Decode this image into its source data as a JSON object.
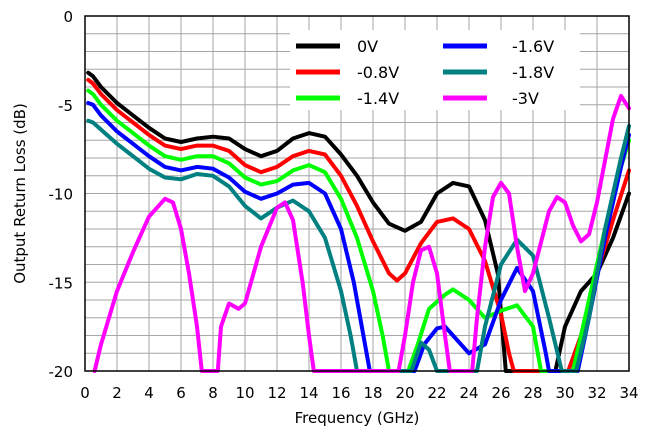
{
  "chart_data": {
    "type": "line",
    "title": "",
    "xlabel": "Frequency (GHz)",
    "ylabel": "Output Return Loss (dB)",
    "xlim": [
      0,
      34
    ],
    "ylim": [
      -20,
      0
    ],
    "x_ticks": [
      0,
      2,
      4,
      6,
      8,
      10,
      12,
      14,
      16,
      18,
      20,
      22,
      24,
      26,
      28,
      30,
      32,
      34
    ],
    "y_ticks": [
      0,
      -5,
      -10,
      -15,
      -20
    ],
    "grid": true,
    "legend_placement": "top-right",
    "series": [
      {
        "name": "0V",
        "color": "#000000",
        "points": [
          [
            0.2,
            -3.2
          ],
          [
            0.5,
            -3.4
          ],
          [
            1,
            -4.0
          ],
          [
            2,
            -4.9
          ],
          [
            3,
            -5.6
          ],
          [
            4,
            -6.3
          ],
          [
            5,
            -6.9
          ],
          [
            6,
            -7.1
          ],
          [
            7,
            -6.9
          ],
          [
            8,
            -6.8
          ],
          [
            9,
            -6.9
          ],
          [
            10,
            -7.5
          ],
          [
            11,
            -7.9
          ],
          [
            12,
            -7.6
          ],
          [
            13,
            -6.9
          ],
          [
            14,
            -6.6
          ],
          [
            15,
            -6.8
          ],
          [
            16,
            -7.8
          ],
          [
            17,
            -9.0
          ],
          [
            18,
            -10.5
          ],
          [
            19,
            -11.7
          ],
          [
            20,
            -12.1
          ],
          [
            21,
            -11.6
          ],
          [
            22,
            -10.0
          ],
          [
            23,
            -9.4
          ],
          [
            24,
            -9.6
          ],
          [
            25,
            -11.5
          ],
          [
            25.8,
            -14.5
          ],
          [
            26.3,
            -20
          ],
          [
            29.4,
            -20
          ],
          [
            30,
            -17.5
          ],
          [
            31,
            -15.5
          ],
          [
            32,
            -14.5
          ],
          [
            33,
            -12.5
          ],
          [
            34,
            -10.0
          ]
        ]
      },
      {
        "name": "-0.8V",
        "color": "#ff0000",
        "points": [
          [
            0.2,
            -3.6
          ],
          [
            0.5,
            -3.8
          ],
          [
            1,
            -4.4
          ],
          [
            2,
            -5.3
          ],
          [
            3,
            -6.0
          ],
          [
            4,
            -6.7
          ],
          [
            5,
            -7.3
          ],
          [
            6,
            -7.5
          ],
          [
            7,
            -7.3
          ],
          [
            8,
            -7.3
          ],
          [
            9,
            -7.6
          ],
          [
            10,
            -8.4
          ],
          [
            11,
            -8.8
          ],
          [
            12,
            -8.5
          ],
          [
            13,
            -7.9
          ],
          [
            14,
            -7.6
          ],
          [
            15,
            -7.8
          ],
          [
            16,
            -9.0
          ],
          [
            17,
            -10.7
          ],
          [
            18,
            -12.7
          ],
          [
            19,
            -14.5
          ],
          [
            19.5,
            -14.9
          ],
          [
            20,
            -14.5
          ],
          [
            21,
            -12.8
          ],
          [
            22,
            -11.6
          ],
          [
            23,
            -11.4
          ],
          [
            24,
            -12.0
          ],
          [
            25,
            -13.8
          ],
          [
            26,
            -16.8
          ],
          [
            26.5,
            -19
          ],
          [
            26.8,
            -20
          ],
          [
            30.2,
            -20
          ],
          [
            31,
            -18.0
          ],
          [
            32,
            -14.5
          ],
          [
            33,
            -11.5
          ],
          [
            34,
            -8.7
          ]
        ]
      },
      {
        "name": "-1.4V",
        "color": "#00ff00",
        "points": [
          [
            0.2,
            -4.2
          ],
          [
            0.5,
            -4.4
          ],
          [
            1,
            -5.0
          ],
          [
            2,
            -5.9
          ],
          [
            3,
            -6.6
          ],
          [
            4,
            -7.3
          ],
          [
            5,
            -7.9
          ],
          [
            6,
            -8.1
          ],
          [
            7,
            -7.9
          ],
          [
            8,
            -7.9
          ],
          [
            9,
            -8.3
          ],
          [
            10,
            -9.1
          ],
          [
            11,
            -9.5
          ],
          [
            12,
            -9.3
          ],
          [
            13,
            -8.7
          ],
          [
            14,
            -8.4
          ],
          [
            15,
            -8.8
          ],
          [
            16,
            -10.3
          ],
          [
            17,
            -12.5
          ],
          [
            18,
            -15.5
          ],
          [
            18.6,
            -18
          ],
          [
            19,
            -20
          ],
          [
            20.2,
            -20
          ],
          [
            20.8,
            -18.5
          ],
          [
            21.5,
            -16.5
          ],
          [
            22.5,
            -15.7
          ],
          [
            23,
            -15.4
          ],
          [
            24,
            -16.0
          ],
          [
            25,
            -17.0
          ],
          [
            26,
            -16.6
          ],
          [
            27,
            -16.3
          ],
          [
            28,
            -17.5
          ],
          [
            28.5,
            -20
          ],
          [
            30.5,
            -20
          ],
          [
            31.5,
            -16
          ],
          [
            32.5,
            -12
          ],
          [
            33.5,
            -8.5
          ],
          [
            34,
            -7.0
          ]
        ]
      },
      {
        "name": "-1.6V",
        "color": "#0000ff",
        "points": [
          [
            0.2,
            -4.9
          ],
          [
            0.5,
            -5.0
          ],
          [
            1,
            -5.6
          ],
          [
            2,
            -6.5
          ],
          [
            3,
            -7.2
          ],
          [
            4,
            -7.9
          ],
          [
            5,
            -8.5
          ],
          [
            6,
            -8.7
          ],
          [
            7,
            -8.5
          ],
          [
            8,
            -8.6
          ],
          [
            9,
            -9.1
          ],
          [
            10,
            -9.9
          ],
          [
            11,
            -10.3
          ],
          [
            12,
            -10.0
          ],
          [
            13,
            -9.5
          ],
          [
            14,
            -9.4
          ],
          [
            15,
            -10.0
          ],
          [
            16,
            -12.0
          ],
          [
            16.8,
            -15
          ],
          [
            17.5,
            -18.5
          ],
          [
            17.8,
            -20
          ],
          [
            20.6,
            -20
          ],
          [
            21.2,
            -18.5
          ],
          [
            22,
            -17.6
          ],
          [
            22.5,
            -17.5
          ],
          [
            23,
            -18.0
          ],
          [
            24,
            -19.0
          ],
          [
            25,
            -18.5
          ],
          [
            26,
            -16.0
          ],
          [
            27,
            -14.2
          ],
          [
            28,
            -15.5
          ],
          [
            28.8,
            -19
          ],
          [
            29,
            -20
          ],
          [
            30.8,
            -20
          ],
          [
            31.5,
            -17
          ],
          [
            32.5,
            -12.5
          ],
          [
            33.5,
            -8.5
          ],
          [
            34,
            -6.7
          ]
        ]
      },
      {
        "name": "-1.8V",
        "color": "#008080",
        "points": [
          [
            0.2,
            -5.9
          ],
          [
            0.5,
            -6.0
          ],
          [
            1,
            -6.4
          ],
          [
            2,
            -7.2
          ],
          [
            3,
            -7.9
          ],
          [
            4,
            -8.6
          ],
          [
            5,
            -9.1
          ],
          [
            6,
            -9.2
          ],
          [
            7,
            -8.9
          ],
          [
            8,
            -9.0
          ],
          [
            9,
            -9.6
          ],
          [
            10,
            -10.7
          ],
          [
            11,
            -11.4
          ],
          [
            12,
            -10.8
          ],
          [
            13,
            -10.4
          ],
          [
            14,
            -11.0
          ],
          [
            15,
            -12.5
          ],
          [
            16,
            -15.5
          ],
          [
            16.6,
            -18
          ],
          [
            17,
            -20
          ],
          [
            20.4,
            -20
          ],
          [
            21,
            -18.4
          ],
          [
            21.5,
            -18.8
          ],
          [
            22,
            -20
          ],
          [
            24.5,
            -20
          ],
          [
            25,
            -17.5
          ],
          [
            26,
            -14.0
          ],
          [
            27,
            -12.6
          ],
          [
            28,
            -13.5
          ],
          [
            29,
            -17.0
          ],
          [
            29.8,
            -20
          ],
          [
            30.7,
            -20
          ],
          [
            31.5,
            -17
          ],
          [
            32.5,
            -12
          ],
          [
            33.5,
            -8
          ],
          [
            34,
            -6.2
          ]
        ]
      },
      {
        "name": "-3V",
        "color": "#ff00ff",
        "points": [
          [
            0.6,
            -20
          ],
          [
            1,
            -18.5
          ],
          [
            2,
            -15.5
          ],
          [
            3,
            -13.3
          ],
          [
            4,
            -11.3
          ],
          [
            5,
            -10.3
          ],
          [
            5.5,
            -10.5
          ],
          [
            6,
            -12.0
          ],
          [
            6.5,
            -14.5
          ],
          [
            7,
            -17.5
          ],
          [
            7.3,
            -20
          ],
          [
            8.3,
            -20
          ],
          [
            8.5,
            -17.5
          ],
          [
            9,
            -16.2
          ],
          [
            9.6,
            -16.5
          ],
          [
            10,
            -16.2
          ],
          [
            11,
            -13.0
          ],
          [
            12,
            -10.8
          ],
          [
            12.5,
            -10.5
          ],
          [
            13,
            -11.5
          ],
          [
            13.6,
            -15
          ],
          [
            14,
            -18
          ],
          [
            14.3,
            -20
          ],
          [
            19.6,
            -20
          ],
          [
            20,
            -18.0
          ],
          [
            20.5,
            -15
          ],
          [
            21,
            -13.2
          ],
          [
            21.5,
            -13
          ],
          [
            22,
            -14.5
          ],
          [
            22.5,
            -18
          ],
          [
            22.8,
            -20
          ],
          [
            24.2,
            -20
          ],
          [
            24.5,
            -17
          ],
          [
            25,
            -13
          ],
          [
            25.5,
            -10.2
          ],
          [
            26,
            -9.4
          ],
          [
            26.5,
            -10.0
          ],
          [
            27,
            -13.0
          ],
          [
            27.5,
            -15.5
          ],
          [
            28,
            -14.5
          ],
          [
            29,
            -11.0
          ],
          [
            29.5,
            -10.2
          ],
          [
            30,
            -10.5
          ],
          [
            30.5,
            -11.8
          ],
          [
            31,
            -12.7
          ],
          [
            31.5,
            -12.3
          ],
          [
            32,
            -10.5
          ],
          [
            33,
            -5.8
          ],
          [
            33.5,
            -4.5
          ],
          [
            34,
            -5.2
          ]
        ]
      }
    ]
  }
}
